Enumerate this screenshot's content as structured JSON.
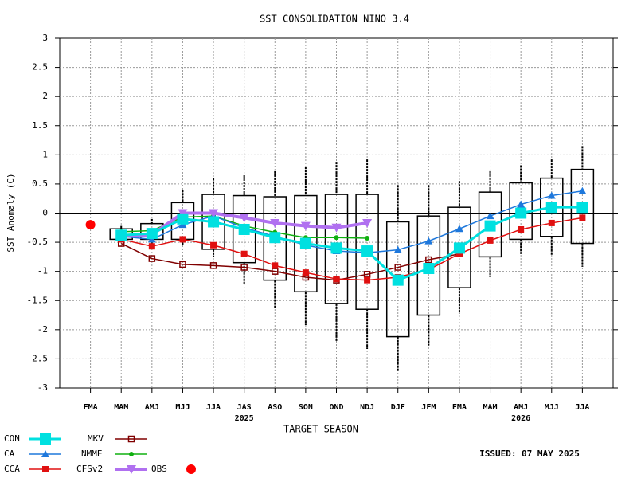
{
  "chart_data": {
    "type": "line",
    "title": "SST CONSOLIDATION NINO 3.4",
    "x_label": "TARGET SEASON",
    "y_label": "SST Anomaly (C)",
    "issued": "ISSUED: 07 MAY 2025",
    "categories": [
      "FMA",
      "MAM",
      "AMJ",
      "MJJ",
      "JJA",
      "JAS",
      "ASO",
      "SON",
      "OND",
      "NDJ",
      "DJF",
      "JFM",
      "FMA",
      "MAM",
      "AMJ",
      "MJJ",
      "JJA"
    ],
    "year_labels": [
      null,
      null,
      null,
      null,
      null,
      "2025",
      null,
      null,
      null,
      null,
      null,
      null,
      null,
      null,
      "2026",
      null,
      null
    ],
    "ylim": [
      -3,
      3
    ],
    "yticks": [
      -3,
      -2.5,
      -2,
      -1.5,
      -1,
      -0.5,
      0,
      0.5,
      1,
      1.5,
      2,
      2.5,
      3
    ],
    "grid": true,
    "boxes": {
      "high": [
        null,
        -0.27,
        -0.18,
        0.18,
        0.32,
        0.3,
        0.28,
        0.3,
        0.32,
        0.32,
        -0.15,
        -0.05,
        0.1,
        0.36,
        0.52,
        0.6,
        0.75
      ],
      "low": [
        null,
        -0.45,
        -0.45,
        -0.45,
        -0.62,
        -0.85,
        -1.15,
        -1.35,
        -1.55,
        -1.65,
        -2.12,
        -1.75,
        -1.28,
        -0.75,
        -0.45,
        -0.4,
        -0.52
      ],
      "max": [
        null,
        -0.22,
        -0.1,
        0.4,
        0.6,
        0.65,
        0.72,
        0.8,
        0.88,
        0.92,
        0.48,
        0.48,
        0.55,
        0.72,
        0.82,
        0.92,
        1.15
      ],
      "min": [
        null,
        -0.5,
        -0.55,
        -0.55,
        -0.75,
        -1.22,
        -1.62,
        -1.92,
        -2.2,
        -2.33,
        -2.72,
        -2.27,
        -1.72,
        -1.1,
        -0.7,
        -0.72,
        -0.92
      ]
    },
    "series": [
      {
        "name": "CON",
        "color": "#00e0e0",
        "marker": "square",
        "width": 3,
        "values": [
          null,
          -0.38,
          -0.35,
          -0.1,
          -0.15,
          -0.28,
          -0.42,
          -0.52,
          -0.6,
          -0.65,
          -1.15,
          -0.95,
          -0.6,
          -0.22,
          0.0,
          0.1,
          0.1
        ]
      },
      {
        "name": "CA",
        "color": "#1e78dc",
        "marker": "triangle",
        "width": 1.5,
        "values": [
          null,
          -0.4,
          -0.45,
          -0.2,
          -0.05,
          -0.25,
          -0.4,
          -0.55,
          -0.65,
          -0.68,
          -0.63,
          -0.48,
          -0.27,
          -0.05,
          0.15,
          0.3,
          0.38
        ]
      },
      {
        "name": "CCA",
        "color": "#e01010",
        "marker": "square-small",
        "width": 1.5,
        "values": [
          null,
          -0.45,
          -0.57,
          -0.45,
          -0.55,
          -0.7,
          -0.9,
          -1.02,
          -1.13,
          -1.15,
          -1.1,
          -0.97,
          -0.7,
          -0.47,
          -0.28,
          -0.17,
          -0.08
        ]
      },
      {
        "name": "MKV",
        "color": "#800000",
        "marker": "square-open",
        "width": 1.5,
        "values": [
          null,
          -0.52,
          -0.78,
          -0.88,
          -0.9,
          -0.93,
          -1.0,
          -1.1,
          -1.15,
          -1.05,
          -0.93,
          -0.8,
          -0.7,
          null,
          null,
          null,
          null
        ]
      },
      {
        "name": "NMME",
        "color": "#10b010",
        "marker": "dot",
        "width": 1.5,
        "values": [
          null,
          -0.32,
          -0.3,
          -0.07,
          -0.05,
          -0.22,
          -0.33,
          -0.42,
          -0.42,
          -0.43,
          null,
          null,
          null,
          null,
          null,
          null,
          null
        ]
      },
      {
        "name": "CFSv2",
        "color": "#b070f0",
        "marker": "triangle-down",
        "width": 4,
        "values": [
          null,
          -0.4,
          -0.37,
          0.0,
          0.0,
          -0.08,
          -0.17,
          -0.22,
          -0.25,
          -0.17,
          null,
          null,
          null,
          null,
          null,
          null,
          null
        ]
      },
      {
        "name": "OBS",
        "color": "#ff0000",
        "marker": "big-dot",
        "width": 0,
        "values": [
          -0.2,
          null,
          null,
          null,
          null,
          null,
          null,
          null,
          null,
          null,
          null,
          null,
          null,
          null,
          null,
          null,
          null
        ]
      }
    ]
  }
}
